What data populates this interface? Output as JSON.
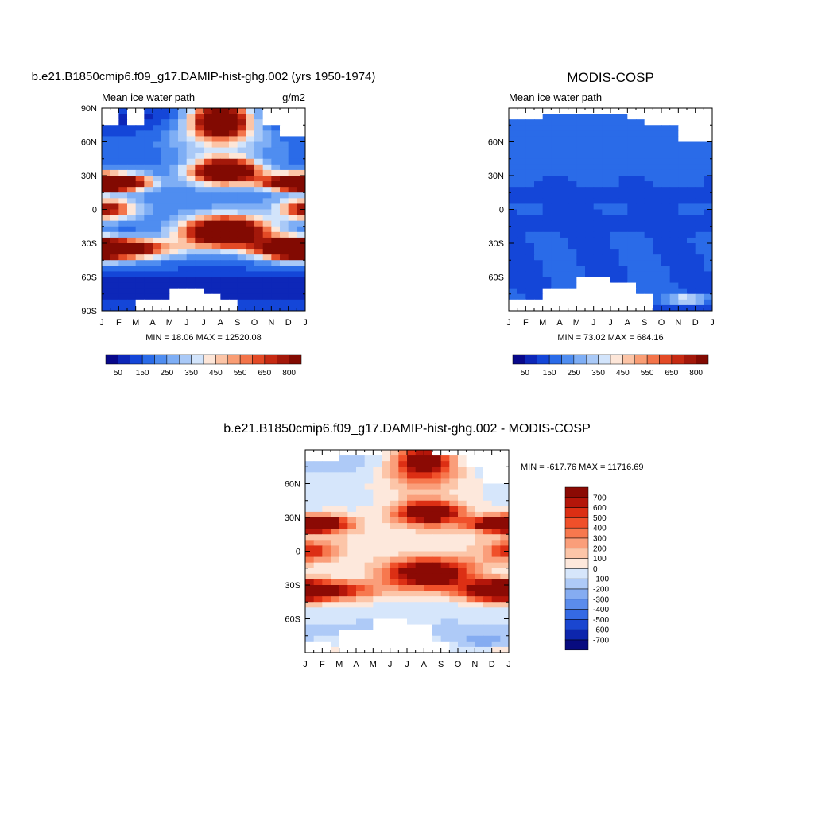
{
  "figure": {
    "units": "g/m2"
  },
  "chart_data": [
    {
      "type": "heatmap",
      "panel": "model",
      "title": "b.e21.B1850cmip6.f09_g17.DAMIP-hist-ghg.002 (yrs 1950-1974)",
      "left_label": "Mean ice water path",
      "right_label": "g/m2",
      "x_ticks": [
        "J",
        "F",
        "M",
        "A",
        "M",
        "J",
        "J",
        "A",
        "S",
        "O",
        "N",
        "D",
        "J"
      ],
      "y_ticks": [
        "90N",
        "60N",
        "30N",
        "0",
        "30S",
        "60S",
        "90S"
      ],
      "ylim": [
        -90,
        90
      ],
      "stats": "MIN =  18.06 MAX = 12520.08",
      "colorbar_labels": [
        "50",
        "150",
        "250",
        "350",
        "450",
        "550",
        "650",
        "800"
      ],
      "field": "model",
      "grid": {
        "rows": 36,
        "cols": 24
      }
    },
    {
      "type": "heatmap",
      "panel": "obs",
      "title": "MODIS-COSP",
      "left_label": "Mean ice water path",
      "right_label": "",
      "x_ticks": [
        "J",
        "F",
        "M",
        "A",
        "M",
        "J",
        "J",
        "A",
        "S",
        "O",
        "N",
        "D",
        "J"
      ],
      "y_ticks": [
        "60N",
        "30N",
        "0",
        "30S",
        "60S"
      ],
      "ylim": [
        -90,
        90
      ],
      "stats": "MIN =  73.02 MAX = 684.16",
      "colorbar_labels": [
        "50",
        "150",
        "250",
        "350",
        "450",
        "550",
        "650",
        "800"
      ],
      "field": "obs",
      "grid": {
        "rows": 36,
        "cols": 24
      }
    },
    {
      "type": "heatmap",
      "panel": "diff",
      "title": "b.e21.B1850cmip6.f09_g17.DAMIP-hist-ghg.002 - MODIS-COSP",
      "x_ticks": [
        "J",
        "F",
        "M",
        "A",
        "M",
        "J",
        "J",
        "A",
        "S",
        "O",
        "N",
        "D",
        "J"
      ],
      "y_ticks": [
        "60N",
        "30N",
        "0",
        "30S",
        "60S"
      ],
      "ylim": [
        -90,
        90
      ],
      "stats": "MIN = -617.76 MAX = 11716.69",
      "colorbar_labels": [
        "700",
        "600",
        "500",
        "400",
        "300",
        "200",
        "100",
        "0",
        "-100",
        "-200",
        "-300",
        "-400",
        "-500",
        "-600",
        "-700"
      ],
      "field": "diff",
      "grid": {
        "rows": 36,
        "cols": 24
      }
    }
  ],
  "colors": {
    "seq": [
      "#08088a",
      "#0d27b8",
      "#1446d8",
      "#2a6be8",
      "#4f8df0",
      "#7eaef5",
      "#a9c9f7",
      "#d2e4fb",
      "#fde6d8",
      "#fcc4a6",
      "#f99d74",
      "#f3744a",
      "#e34a26",
      "#c62a12",
      "#a3180a",
      "#820a02"
    ],
    "div": [
      "#8b0a04",
      "#b4160a",
      "#dc2f14",
      "#f0502a",
      "#f7784e",
      "#fa9e7a",
      "#fcc5a8",
      "#fde8dc",
      "#d6e6fb",
      "#aecaf7",
      "#85acf1",
      "#5b8cec",
      "#356ae4",
      "#1a46d0",
      "#0d26ad",
      "#080b7f"
    ]
  }
}
